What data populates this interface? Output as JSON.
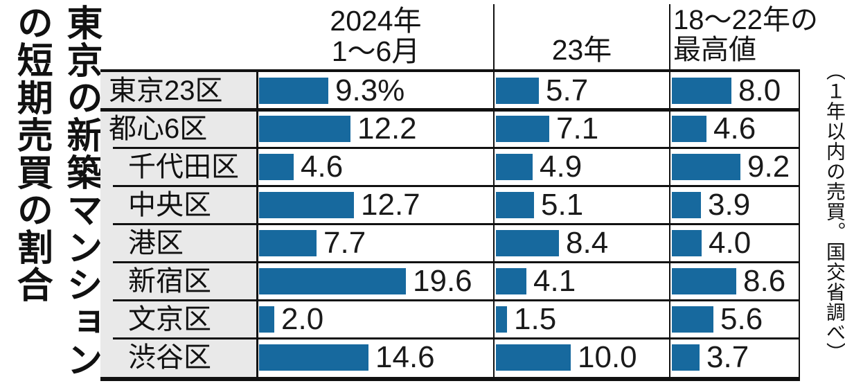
{
  "title": "東京の新築マンションの短期売買の割合",
  "annotation": "（１年以内の売買。国交省調べ）",
  "columns": [
    {
      "header": "2024年\n1〜6月"
    },
    {
      "header": "23年"
    },
    {
      "header": "18〜22年の\n最高値"
    }
  ],
  "rows": [
    {
      "label": "東京23区",
      "indent": false,
      "display": [
        "9.3%",
        "5.7",
        "8.0"
      ],
      "values": [
        9.3,
        5.7,
        8.0
      ]
    },
    {
      "label": "都心6区",
      "indent": false,
      "display": [
        "12.2",
        "7.1",
        "4.6"
      ],
      "values": [
        12.2,
        7.1,
        4.6
      ]
    },
    {
      "label": "千代田区",
      "indent": true,
      "display": [
        "4.6",
        "4.9",
        "9.2"
      ],
      "values": [
        4.6,
        4.9,
        9.2
      ]
    },
    {
      "label": "中央区",
      "indent": true,
      "display": [
        "12.7",
        "5.1",
        "3.9"
      ],
      "values": [
        12.7,
        5.1,
        3.9
      ]
    },
    {
      "label": "港区",
      "indent": true,
      "display": [
        "7.7",
        "8.4",
        "4.0"
      ],
      "values": [
        7.7,
        8.4,
        4.0
      ]
    },
    {
      "label": "新宿区",
      "indent": true,
      "display": [
        "19.6",
        "4.1",
        "8.6"
      ],
      "values": [
        19.6,
        4.1,
        8.6
      ]
    },
    {
      "label": "文京区",
      "indent": true,
      "display": [
        "2.0",
        "1.5",
        "5.6"
      ],
      "values": [
        2.0,
        1.5,
        5.6
      ]
    },
    {
      "label": "渋谷区",
      "indent": true,
      "display": [
        "14.6",
        "10.0",
        "3.7"
      ],
      "values": [
        14.6,
        10.0,
        3.7
      ]
    }
  ],
  "colors": {
    "bar": "#17699e",
    "label_bg": "#e9e9e9",
    "rule": "#111111",
    "text": "#1a1a1a"
  },
  "chart_data": {
    "type": "bar",
    "orientation": "horizontal",
    "title": "東京の新築マンションの短期売買の割合",
    "note": "1年以内の売買。国交省調べ",
    "unit": "%",
    "value_labels": true,
    "categories": [
      "東京23区",
      "都心6区",
      "千代田区",
      "中央区",
      "港区",
      "新宿区",
      "文京区",
      "渋谷区"
    ],
    "series": [
      {
        "name": "2024年1〜6月",
        "values": [
          9.3,
          12.2,
          4.6,
          12.7,
          7.7,
          19.6,
          2.0,
          14.6
        ]
      },
      {
        "name": "23年",
        "values": [
          5.7,
          7.1,
          4.9,
          5.1,
          8.4,
          4.1,
          1.5,
          10.0
        ]
      },
      {
        "name": "18〜22年の最高値",
        "values": [
          8.0,
          4.6,
          9.2,
          3.9,
          4.0,
          8.6,
          5.6,
          3.7
        ]
      }
    ]
  }
}
